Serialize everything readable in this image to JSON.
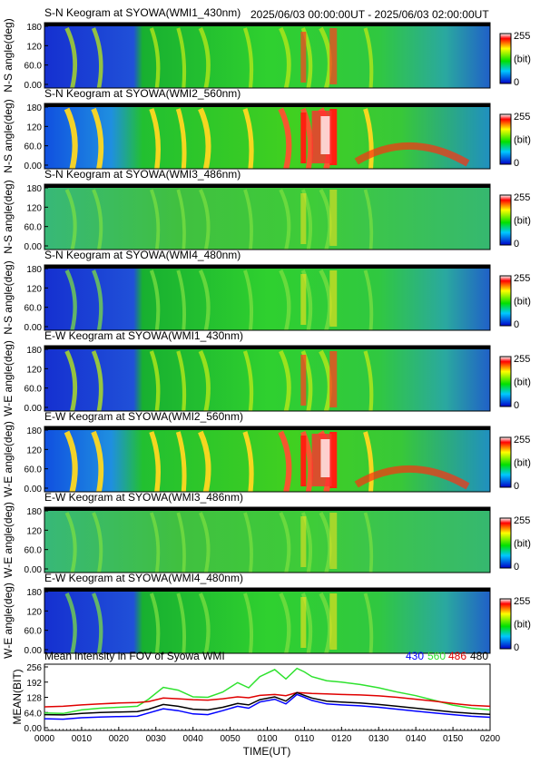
{
  "header": {
    "range_text": "2025/06/03 00:00:00UT - 2025/06/03 02:00:00UT"
  },
  "colorbar": {
    "max_label": "255",
    "unit_label": "(bit)",
    "min_label": "0"
  },
  "panels": [
    {
      "title": "S-N Keogram at SYOWA(WMI1_430nm)",
      "ylabel": "N-S angle(deg)",
      "ticks": [
        "180",
        "120",
        "60.0",
        "0.00"
      ],
      "brightness": 0.55
    },
    {
      "title": "S-N Keogram at SYOWA(WMI2_560nm)",
      "ylabel": "N-S angle(deg)",
      "ticks": [
        "180",
        "120",
        "60.0",
        "0.00"
      ],
      "brightness": 1.0
    },
    {
      "title": "S-N Keogram at SYOWA(WMI3_486nm)",
      "ylabel": "N-S angle(deg)",
      "ticks": [
        "180",
        "120",
        "60.0",
        "0.00"
      ],
      "brightness": 0.35
    },
    {
      "title": "S-N Keogram at SYOWA(WMI4_480nm)",
      "ylabel": "N-S angle(deg)",
      "ticks": [
        "180",
        "120",
        "60.0",
        "0.00"
      ],
      "brightness": 0.45
    },
    {
      "title": "E-W Keogram at SYOWA(WMI1_430nm)",
      "ylabel": "W-E angle(deg)",
      "ticks": [
        "180",
        "120",
        "60.0",
        "0.00"
      ],
      "brightness": 0.6
    },
    {
      "title": "E-W Keogram at SYOWA(WMI2_560nm)",
      "ylabel": "W-E angle(deg)",
      "ticks": [
        "180",
        "120",
        "60.0",
        "0.00"
      ],
      "brightness": 1.0
    },
    {
      "title": "E-W Keogram at SYOWA(WMI3_486nm)",
      "ylabel": "W-E angle(deg)",
      "ticks": [
        "180",
        "120",
        "60.0",
        "0.00"
      ],
      "brightness": 0.35
    },
    {
      "title": "E-W Keogram at SYOWA(WMI4_480nm)",
      "ylabel": "W-E angle(deg)",
      "ticks": [
        "180",
        "120",
        "60.0",
        "0.00"
      ],
      "brightness": 0.45
    }
  ],
  "colors": {
    "blue": "#0000ff",
    "green": "#2ee22e",
    "red": "#e00000",
    "black": "#000000"
  },
  "chart_data": {
    "type": "line",
    "title": "Mean intensity in FOV of Syowa WMI",
    "ylabel": "MEAN(BIT)",
    "xlabel": "TIME(UT)",
    "ylim": [
      0,
      256
    ],
    "yticks": [
      "256",
      "192",
      "128",
      "64.0",
      "0.00"
    ],
    "xticks": [
      "0000",
      "0010",
      "0020",
      "0030",
      "0040",
      "0050",
      "0100",
      "0110",
      "0120",
      "0130",
      "0140",
      "0150",
      "0200"
    ],
    "x": [
      0,
      5,
      10,
      15,
      20,
      25,
      28,
      32,
      36,
      40,
      44,
      48,
      52,
      55,
      58,
      62,
      65,
      68,
      70,
      72,
      76,
      80,
      85,
      90,
      95,
      100,
      105,
      110,
      115,
      120
    ],
    "series": [
      {
        "name": "430",
        "color": "#0000ff",
        "values": [
          38,
          36,
          42,
          45,
          47,
          48,
          62,
          80,
          72,
          58,
          55,
          72,
          90,
          82,
          108,
          120,
          100,
          140,
          128,
          115,
          100,
          96,
          92,
          86,
          78,
          70,
          62,
          55,
          48,
          44
        ]
      },
      {
        "name": "560",
        "color": "#2ee22e",
        "values": [
          62,
          60,
          75,
          82,
          86,
          90,
          120,
          170,
          158,
          130,
          128,
          150,
          190,
          168,
          215,
          245,
          205,
          250,
          235,
          215,
          198,
          192,
          182,
          168,
          150,
          135,
          115,
          95,
          82,
          75
        ]
      },
      {
        "name": "486",
        "color": "#e00000",
        "values": [
          88,
          90,
          96,
          100,
          104,
          106,
          110,
          125,
          122,
          118,
          116,
          122,
          130,
          126,
          136,
          140,
          135,
          148,
          146,
          144,
          142,
          140,
          138,
          134,
          128,
          120,
          112,
          102,
          94,
          90
        ]
      },
      {
        "name": "480",
        "color": "#000000",
        "values": [
          55,
          54,
          60,
          64,
          66,
          68,
          78,
          98,
          90,
          78,
          75,
          86,
          102,
          96,
          118,
          130,
          112,
          148,
          136,
          125,
          112,
          108,
          104,
          98,
          90,
          82,
          74,
          66,
          60,
          56
        ]
      }
    ]
  }
}
